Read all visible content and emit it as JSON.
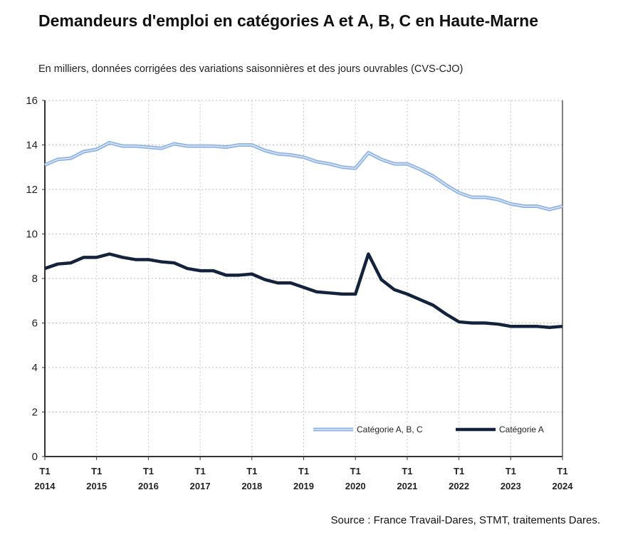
{
  "title": "Demandeurs d'emploi en catégories A et A, B, C en Haute-Marne",
  "subtitle": "En milliers, données corrigées des variations saisonnières et des jours ouvrables (CVS-CJO)",
  "source": "Source : France Travail-Dares, STMT, traitements Dares.",
  "chart_data": {
    "type": "line",
    "title": "Demandeurs d'emploi en catégories A et A, B, C en Haute-Marne",
    "xlabel": "",
    "ylabel": "En milliers",
    "ylim": [
      0,
      16
    ],
    "yticks": [
      "0",
      "2",
      "4",
      "6",
      "8",
      "10",
      "12",
      "14",
      "16"
    ],
    "xticks": [
      [
        "T1",
        "2014"
      ],
      [
        "T1",
        "2015"
      ],
      [
        "T1",
        "2016"
      ],
      [
        "T1",
        "2017"
      ],
      [
        "T1",
        "2018"
      ],
      [
        "T1",
        "2019"
      ],
      [
        "T1",
        "2020"
      ],
      [
        "T1",
        "2021"
      ],
      [
        "T1",
        "2022"
      ],
      [
        "T1",
        "2023"
      ],
      [
        "T1",
        "2024"
      ]
    ],
    "x_start": "2014 T1",
    "x_end": "2024 T1",
    "frequency": "quarterly",
    "grid": true,
    "legend_position": "bottom-right",
    "series": [
      {
        "name": "Catégorie A, B, C",
        "color": "#8fb4e3",
        "values": [
          13.1,
          13.35,
          13.4,
          13.7,
          13.8,
          14.1,
          13.95,
          13.95,
          13.9,
          13.85,
          14.05,
          13.95,
          13.95,
          13.95,
          13.9,
          14.0,
          14.0,
          13.75,
          13.6,
          13.55,
          13.45,
          13.25,
          13.15,
          13.0,
          12.95,
          13.65,
          13.35,
          13.15,
          13.15,
          12.9,
          12.6,
          12.2,
          11.85,
          11.65,
          11.65,
          11.55,
          11.35,
          11.25,
          11.25,
          11.1,
          11.25
        ]
      },
      {
        "name": "Catégorie A",
        "color": "#14233d",
        "values": [
          8.45,
          8.65,
          8.7,
          8.95,
          8.95,
          9.1,
          8.95,
          8.85,
          8.85,
          8.75,
          8.7,
          8.45,
          8.35,
          8.35,
          8.15,
          8.15,
          8.2,
          7.95,
          7.8,
          7.8,
          7.6,
          7.4,
          7.35,
          7.3,
          7.3,
          9.1,
          7.95,
          7.5,
          7.3,
          7.05,
          6.8,
          6.4,
          6.05,
          6.0,
          6.0,
          5.95,
          5.85,
          5.85,
          5.85,
          5.8,
          5.85
        ]
      }
    ]
  }
}
